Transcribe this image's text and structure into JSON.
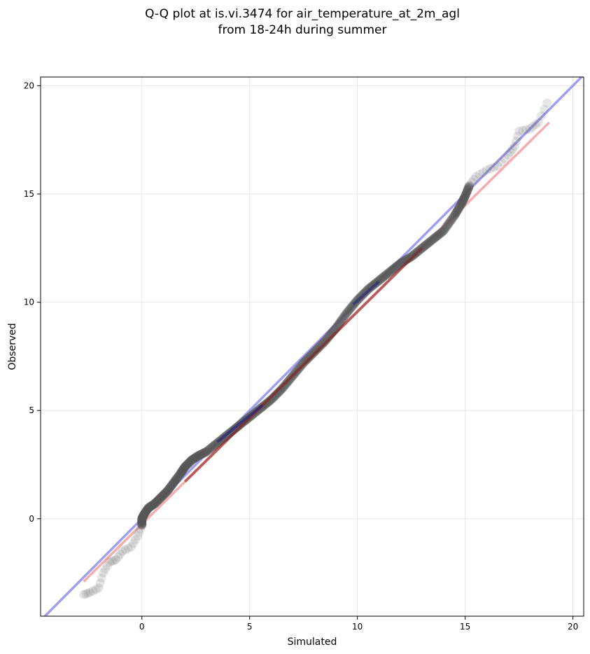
{
  "chart_data": {
    "type": "scatter",
    "title": [
      "Q-Q plot at is.vi.3474 for air_temperature_at_2m_agl",
      "from 18-24h during summer"
    ],
    "xlabel": "Simulated",
    "ylabel": "Observed",
    "xlim": [
      -4.7,
      20.5
    ],
    "ylim": [
      -4.5,
      20.4
    ],
    "xticks": [
      0,
      5,
      10,
      15,
      20
    ],
    "yticks": [
      0,
      5,
      10,
      15,
      20
    ],
    "grid": true,
    "quantile_points": {
      "x": [
        -2.7,
        -2.4,
        -2.0,
        -1.8,
        -1.5,
        -1.2,
        -0.9,
        -0.5,
        -0.2,
        0.0,
        0.0,
        0.1,
        0.3,
        0.6,
        0.9,
        1.2,
        1.5,
        1.8,
        2.0,
        2.3,
        2.6,
        3.0,
        3.5,
        4.0,
        4.5,
        5.0,
        5.5,
        6.0,
        6.5,
        7.0,
        7.5,
        8.0,
        8.5,
        9.0,
        9.5,
        10.0,
        10.5,
        11.0,
        11.5,
        12.0,
        12.5,
        13.0,
        13.5,
        14.0,
        14.5,
        14.8,
        15.0,
        15.2,
        15.5,
        16.0,
        16.5,
        17.0,
        17.3,
        17.5,
        18.0,
        18.4,
        18.8
      ],
      "y": [
        -3.5,
        -3.4,
        -3.2,
        -2.5,
        -2.0,
        -1.9,
        -1.5,
        -1.3,
        -0.8,
        -0.3,
        0.0,
        0.2,
        0.5,
        0.7,
        1.0,
        1.3,
        1.7,
        2.1,
        2.4,
        2.7,
        2.9,
        3.1,
        3.5,
        3.9,
        4.3,
        4.7,
        5.1,
        5.5,
        6.0,
        6.6,
        7.2,
        7.7,
        8.2,
        8.8,
        9.5,
        10.1,
        10.6,
        11.0,
        11.4,
        11.8,
        12.1,
        12.5,
        12.9,
        13.3,
        14.0,
        14.5,
        14.9,
        15.4,
        15.8,
        16.1,
        16.3,
        16.8,
        17.2,
        17.9,
        18.0,
        18.3,
        19.2
      ]
    },
    "reference_lines": [
      {
        "role": "identity",
        "color": "#8888ee",
        "x": [
          -4.7,
          20.5
        ],
        "y": [
          -4.7,
          20.5
        ]
      },
      {
        "role": "fit",
        "color": "#f29a9a",
        "x": [
          -2.7,
          18.9
        ],
        "y": [
          -2.9,
          18.3
        ]
      }
    ],
    "colors": {
      "points": "#555555",
      "dense_overlay_fit": "#8b1a1a",
      "dense_overlay_identity": "#1a1a8b"
    }
  }
}
